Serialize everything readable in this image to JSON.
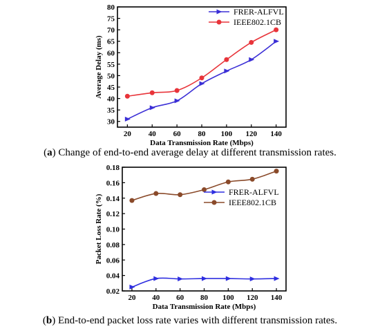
{
  "chart_data": [
    {
      "type": "line",
      "xlabel": "Data Transmission Rate (Mbps)",
      "ylabel": "Average Delay (ms)",
      "x": [
        20,
        40,
        60,
        80,
        100,
        120,
        140
      ],
      "xticks": [
        "20",
        "40",
        "60",
        "80",
        "100",
        "120",
        "140"
      ],
      "yticks": [
        "30",
        "35",
        "40",
        "45",
        "50",
        "55",
        "60",
        "65",
        "70",
        "75",
        "80"
      ],
      "xlim": [
        12,
        148
      ],
      "ylim": [
        27.5,
        80
      ],
      "legend_position": "top-right",
      "grid": false,
      "series": [
        {
          "name": "FRER-ALFVL",
          "values": [
            31,
            36,
            39,
            46.5,
            52,
            57,
            65
          ],
          "color": "#3b2fd6",
          "marker": "triangle-right"
        },
        {
          "name": "IEEE802.1CB",
          "values": [
            41,
            42.5,
            43.5,
            49,
            57,
            64.5,
            70
          ],
          "color": "#e8343a",
          "marker": "circle"
        }
      ],
      "caption": {
        "tag": "a",
        "text": "Change of end-to-end average delay at different transmission rates."
      }
    },
    {
      "type": "line",
      "xlabel": "Data Transmission Rate (Mbps)",
      "ylabel": "Packet Loss Rate (%)",
      "x": [
        20,
        40,
        60,
        80,
        100,
        120,
        140
      ],
      "xticks": [
        "20",
        "40",
        "60",
        "80",
        "100",
        "120",
        "140"
      ],
      "yticks": [
        "0.02",
        "0.04",
        "0.06",
        "0.08",
        "0.10",
        "0.12",
        "0.14",
        "0.16",
        "0.18"
      ],
      "xlim": [
        12,
        148
      ],
      "ylim": [
        0.02,
        0.18
      ],
      "legend_position": "top-right",
      "grid": false,
      "series": [
        {
          "name": "FRER-ALFVL",
          "values": [
            0.025,
            0.036,
            0.0355,
            0.036,
            0.036,
            0.0355,
            0.036
          ],
          "color": "#2e2ee0",
          "marker": "triangle-right"
        },
        {
          "name": "IEEE802.1CB",
          "values": [
            0.137,
            0.146,
            0.1445,
            0.151,
            0.161,
            0.1645,
            0.175
          ],
          "color": "#8a4a2a",
          "marker": "circle"
        }
      ],
      "caption": {
        "tag": "b",
        "text": "End-to-end packet loss rate varies with different transmission rates."
      }
    }
  ]
}
